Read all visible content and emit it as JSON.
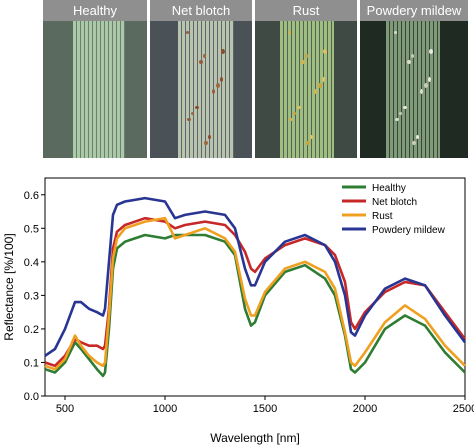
{
  "panels": [
    {
      "label": "Healthy",
      "bg": "#5a6a5e",
      "leaf": "#a9c9a7",
      "spots": []
    },
    {
      "label": "Net blotch",
      "bg": "#4a5257",
      "leaf": "#b8c4ae",
      "spots": [
        "#9a5a3a",
        "#a0683e",
        "#8b4c2e"
      ]
    },
    {
      "label": "Rust",
      "bg": "#3f4a44",
      "leaf": "#9fbf7e",
      "spots": [
        "#d7b24a",
        "#cfa33a",
        "#e0c060"
      ]
    },
    {
      "label": "Powdery mildew",
      "bg": "#1f2a22",
      "leaf": "#7f9a77",
      "spots": [
        "#d9dccc",
        "#c7cbbb",
        "#e6e8dc"
      ]
    }
  ],
  "chart_data": {
    "type": "line",
    "title": "",
    "xlabel": "Wavelength [nm]",
    "ylabel": "Reflectance [%/100]",
    "xlim": [
      400,
      2500
    ],
    "ylim": [
      0,
      0.65
    ],
    "xticks": [
      "500",
      "1000",
      "1500",
      "2000",
      "2500"
    ],
    "yticks": [
      "0.0",
      "0.1",
      "0.2",
      "0.3",
      "0.4",
      "0.5",
      "0.6"
    ],
    "legend_position": "top-right",
    "series": [
      {
        "name": "Healthy",
        "color": "#2e7d32",
        "x": [
          400,
          450,
          500,
          550,
          580,
          620,
          660,
          690,
          700,
          720,
          740,
          760,
          800,
          900,
          1000,
          1050,
          1100,
          1200,
          1300,
          1350,
          1400,
          1430,
          1450,
          1500,
          1600,
          1700,
          1800,
          1850,
          1900,
          1930,
          1950,
          2000,
          2100,
          2200,
          2300,
          2400,
          2500
        ],
        "y": [
          0.08,
          0.07,
          0.1,
          0.16,
          0.14,
          0.11,
          0.08,
          0.06,
          0.07,
          0.2,
          0.38,
          0.44,
          0.46,
          0.48,
          0.47,
          0.48,
          0.48,
          0.48,
          0.46,
          0.42,
          0.26,
          0.21,
          0.22,
          0.3,
          0.37,
          0.39,
          0.35,
          0.3,
          0.18,
          0.08,
          0.07,
          0.1,
          0.2,
          0.24,
          0.21,
          0.13,
          0.07
        ]
      },
      {
        "name": "Net blotch",
        "color": "#c62828",
        "x": [
          400,
          450,
          500,
          550,
          580,
          620,
          660,
          690,
          700,
          720,
          740,
          760,
          800,
          900,
          1000,
          1050,
          1100,
          1200,
          1300,
          1350,
          1400,
          1430,
          1450,
          1500,
          1600,
          1700,
          1800,
          1850,
          1900,
          1930,
          1950,
          2000,
          2100,
          2200,
          2300,
          2400,
          2500
        ],
        "y": [
          0.1,
          0.09,
          0.12,
          0.17,
          0.16,
          0.15,
          0.15,
          0.14,
          0.15,
          0.26,
          0.44,
          0.49,
          0.51,
          0.53,
          0.52,
          0.5,
          0.51,
          0.52,
          0.51,
          0.48,
          0.43,
          0.38,
          0.37,
          0.41,
          0.45,
          0.47,
          0.45,
          0.42,
          0.34,
          0.22,
          0.2,
          0.25,
          0.31,
          0.34,
          0.33,
          0.25,
          0.17
        ]
      },
      {
        "name": "Rust",
        "color": "#f0a020",
        "x": [
          400,
          450,
          500,
          550,
          580,
          620,
          660,
          690,
          700,
          720,
          740,
          760,
          800,
          900,
          1000,
          1050,
          1100,
          1200,
          1300,
          1350,
          1400,
          1430,
          1450,
          1500,
          1600,
          1700,
          1800,
          1850,
          1900,
          1930,
          1950,
          2000,
          2100,
          2200,
          2300,
          2400,
          2500
        ],
        "y": [
          0.09,
          0.08,
          0.11,
          0.18,
          0.15,
          0.12,
          0.1,
          0.09,
          0.1,
          0.24,
          0.41,
          0.47,
          0.5,
          0.52,
          0.53,
          0.47,
          0.48,
          0.5,
          0.47,
          0.43,
          0.29,
          0.24,
          0.24,
          0.31,
          0.38,
          0.4,
          0.37,
          0.32,
          0.19,
          0.1,
          0.09,
          0.13,
          0.22,
          0.27,
          0.23,
          0.15,
          0.09
        ]
      },
      {
        "name": "Powdery mildew",
        "color": "#283593",
        "x": [
          400,
          450,
          500,
          550,
          580,
          620,
          660,
          690,
          700,
          720,
          740,
          760,
          800,
          900,
          1000,
          1050,
          1100,
          1200,
          1300,
          1350,
          1400,
          1430,
          1450,
          1500,
          1600,
          1700,
          1800,
          1850,
          1900,
          1930,
          1950,
          2000,
          2100,
          2200,
          2300,
          2400,
          2500
        ],
        "y": [
          0.12,
          0.14,
          0.2,
          0.28,
          0.28,
          0.26,
          0.25,
          0.24,
          0.26,
          0.4,
          0.54,
          0.57,
          0.58,
          0.59,
          0.58,
          0.53,
          0.54,
          0.55,
          0.54,
          0.5,
          0.38,
          0.33,
          0.33,
          0.4,
          0.46,
          0.48,
          0.45,
          0.4,
          0.3,
          0.19,
          0.18,
          0.24,
          0.32,
          0.35,
          0.33,
          0.24,
          0.16
        ]
      }
    ]
  }
}
